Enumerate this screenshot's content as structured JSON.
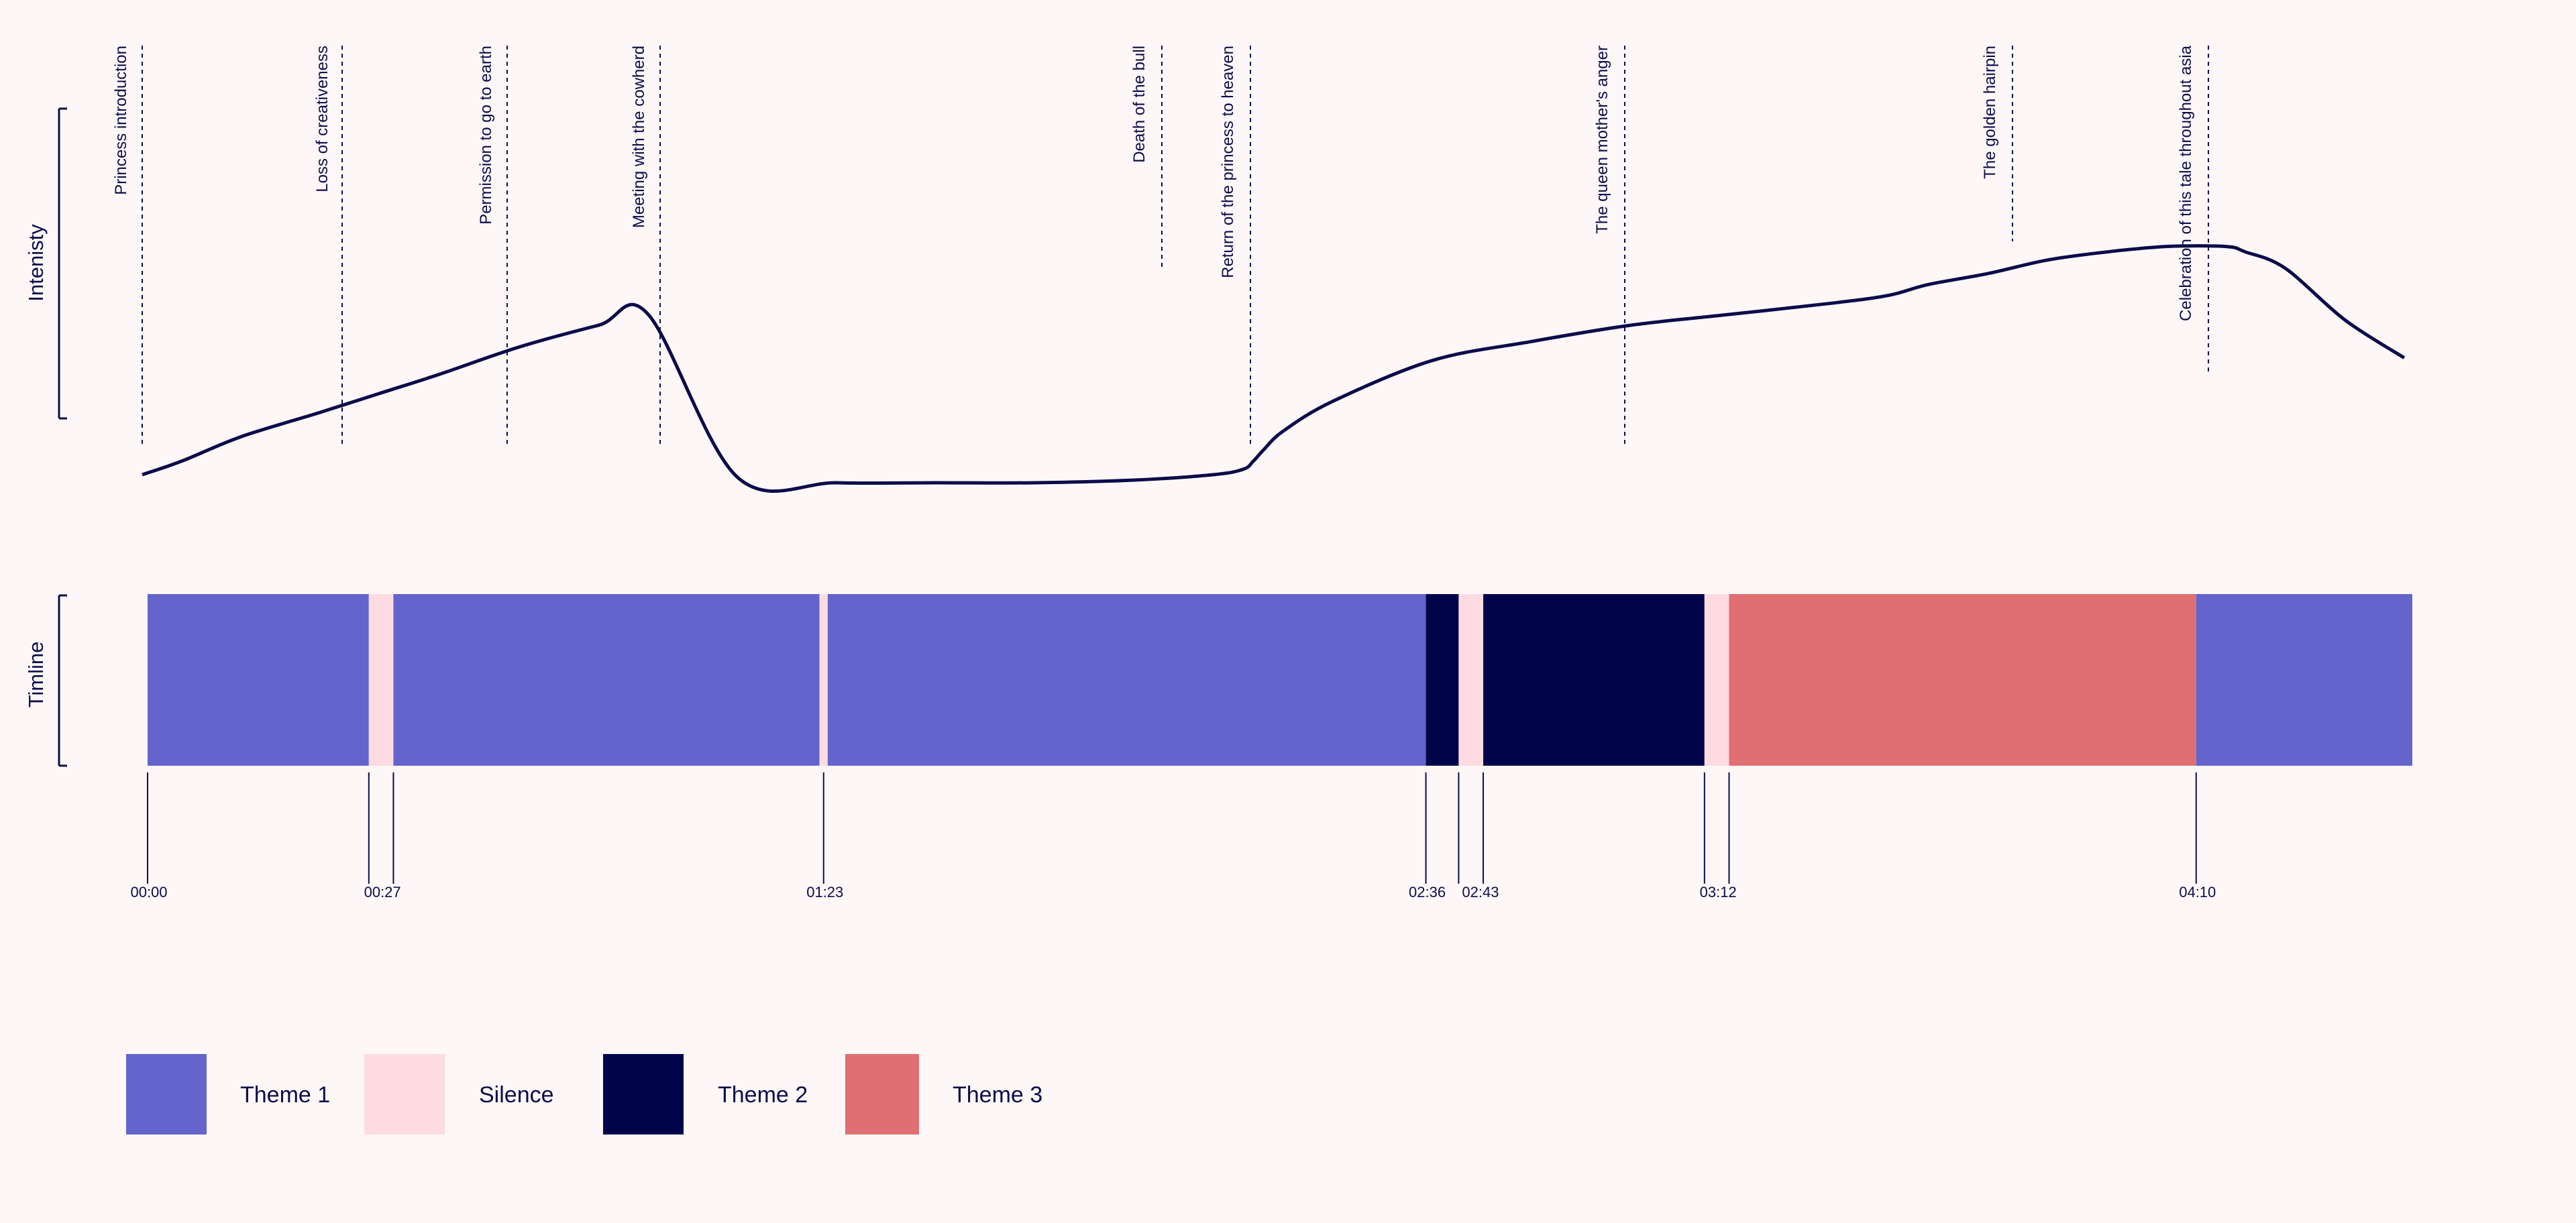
{
  "chart_data": {
    "type": "line",
    "ylabel": "Intenisty",
    "timeline_label": "Timline",
    "intensity_curve": {
      "x": [
        0,
        20,
        50,
        90,
        120,
        150,
        190,
        230,
        255,
        300,
        350,
        400,
        450,
        500,
        540,
        555,
        560,
        565,
        575,
        600,
        650,
        700,
        750,
        800,
        850,
        880,
        900,
        930,
        960,
        990,
        1020,
        1050,
        1060,
        1080,
        1110,
        1140
      ],
      "y": [
        0.03,
        0.08,
        0.17,
        0.26,
        0.33,
        0.4,
        0.5,
        0.58,
        0.62,
        0.02,
        0.0,
        0.0,
        0.0,
        0.01,
        0.03,
        0.05,
        0.08,
        0.12,
        0.19,
        0.3,
        0.45,
        0.52,
        0.58,
        0.62,
        0.66,
        0.69,
        0.73,
        0.77,
        0.82,
        0.85,
        0.87,
        0.87,
        0.85,
        0.79,
        0.6,
        0.46
      ]
    },
    "segments": [
      {
        "theme": "Theme 1",
        "start": 0,
        "end": 27
      },
      {
        "theme": "Silence",
        "start": 27,
        "end": 30
      },
      {
        "theme": "Theme 1",
        "start": 30,
        "end": 82
      },
      {
        "theme": "Silence",
        "start": 82,
        "end": 83
      },
      {
        "theme": "Theme 1",
        "start": 83,
        "end": 156
      },
      {
        "theme": "Theme 2",
        "start": 156,
        "end": 160
      },
      {
        "theme": "Silence",
        "start": 160,
        "end": 163
      },
      {
        "theme": "Theme 2",
        "start": 163,
        "end": 190
      },
      {
        "theme": "Silence",
        "start": 190,
        "end": 193
      },
      {
        "theme": "Theme 3",
        "start": 193,
        "end": 250
      },
      {
        "theme": "Theme 1",
        "start": 250,
        "end": 280
      }
    ],
    "ticks": [
      "00:00",
      "00:27",
      "01:23",
      "02:36",
      "02:43",
      "03:12",
      "04:10"
    ],
    "annotations": [
      "Princess introduction",
      "Loss of creativeness",
      "Permission to go to earth",
      "Meeting with the cowherd",
      "Death of the bull",
      "Return of the princess to heaven",
      "The queen mother's anger",
      "The golden hairpin",
      "Celebration of this tale throughout asia"
    ],
    "legend": [
      {
        "label": "Theme 1",
        "color": "#6464cc"
      },
      {
        "label": "Silence",
        "color": "#fddbe0"
      },
      {
        "label": "Theme 2",
        "color": "#02044a"
      },
      {
        "label": "Theme 3",
        "color": "#e06f72"
      }
    ],
    "colors": {
      "line": "#0c0c4a",
      "background": "#fdf7f7"
    }
  }
}
